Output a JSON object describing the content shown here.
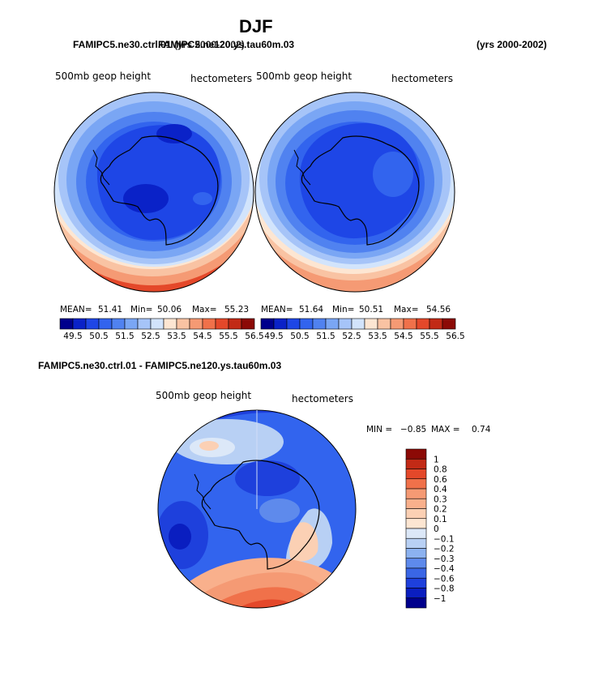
{
  "header": {
    "title": "DJF",
    "case1": "FAMIPC5.ne30.ctrl.01",
    "case2": "FAMIPC5.ne120.ys.tau60m.03",
    "case1_years": "(yrs 2000-2002)",
    "case2_years": "(yrs 2000-2002)",
    "diff_title": "FAMIPC5.ne30.ctrl.01 - FAMIPC5.ne120.ys.tau60m.03"
  },
  "panels": [
    {
      "variable": "500mb geop height",
      "units": "hectometers",
      "mean_label": "MEAN=",
      "mean": "51.41",
      "min_label": "Min=",
      "min": "50.06",
      "max_label": "Max=",
      "max": "55.23"
    },
    {
      "variable": "500mb geop height",
      "units": "hectometers",
      "mean_label": "MEAN=",
      "mean": "51.64",
      "min_label": "Min=",
      "min": "50.51",
      "max_label": "Max=",
      "max": "54.56"
    }
  ],
  "diff_panel": {
    "variable": "500mb geop height",
    "units": "hectometers",
    "min_label": "MIN =",
    "min": "−0.85",
    "max_label": "MAX =",
    "max": "0.74"
  },
  "chart_data": [
    {
      "type": "heatmap",
      "projection": "south-polar stereographic",
      "title": "FAMIPC5.ne30.ctrl.01",
      "field": "500mb geop height",
      "units": "hectometers",
      "stats": {
        "mean": 51.41,
        "min": 50.06,
        "max": 55.23
      },
      "colorbar": {
        "ticks": [
          "49.5",
          "50.5",
          "51.5",
          "52.5",
          "53.5",
          "54.5",
          "55.5",
          "56.5"
        ],
        "colors": [
          "#00008c",
          "#0a22c8",
          "#1e46e6",
          "#3264ee",
          "#5082f0",
          "#7aa6f4",
          "#a6c4f8",
          "#d2e4fc",
          "#fde6d2",
          "#f9c3a3",
          "#f59a74",
          "#f0714a",
          "#e4482a",
          "#c22a16",
          "#8c0a06"
        ]
      }
    },
    {
      "type": "heatmap",
      "projection": "south-polar stereographic",
      "title": "FAMIPC5.ne120.ys.tau60m.03",
      "field": "500mb geop height",
      "units": "hectometers",
      "stats": {
        "mean": 51.64,
        "min": 50.51,
        "max": 54.56
      },
      "colorbar": {
        "ticks": [
          "49.5",
          "50.5",
          "51.5",
          "52.5",
          "53.5",
          "54.5",
          "55.5",
          "56.5"
        ],
        "colors": [
          "#00008c",
          "#0a22c8",
          "#1e46e6",
          "#3264ee",
          "#5082f0",
          "#7aa6f4",
          "#a6c4f8",
          "#d2e4fc",
          "#fde6d2",
          "#f9c3a3",
          "#f59a74",
          "#f0714a",
          "#e4482a",
          "#c22a16",
          "#8c0a06"
        ]
      }
    },
    {
      "type": "heatmap",
      "projection": "south-polar stereographic",
      "title": "FAMIPC5.ne30.ctrl.01 - FAMIPC5.ne120.ys.tau60m.03",
      "field": "500mb geop height",
      "units": "hectometers",
      "stats": {
        "min": -0.85,
        "max": 0.74
      },
      "colorbar": {
        "ticks": [
          "1",
          "0.8",
          "0.6",
          "0.4",
          "0.3",
          "0.2",
          "0.1",
          "0",
          "−0.1",
          "−0.2",
          "−0.3",
          "−0.4",
          "−0.6",
          "−0.8",
          "−1"
        ],
        "colors": [
          "#8c0a06",
          "#c22a16",
          "#e4482a",
          "#f0714a",
          "#f59a74",
          "#f9b08c",
          "#fbd0b4",
          "#fde6d2",
          "#dce8f8",
          "#b8d0f4",
          "#8cb2f0",
          "#5e8aec",
          "#3a66e6",
          "#1e40dc",
          "#0a1ec0",
          "#00008c"
        ]
      }
    }
  ]
}
